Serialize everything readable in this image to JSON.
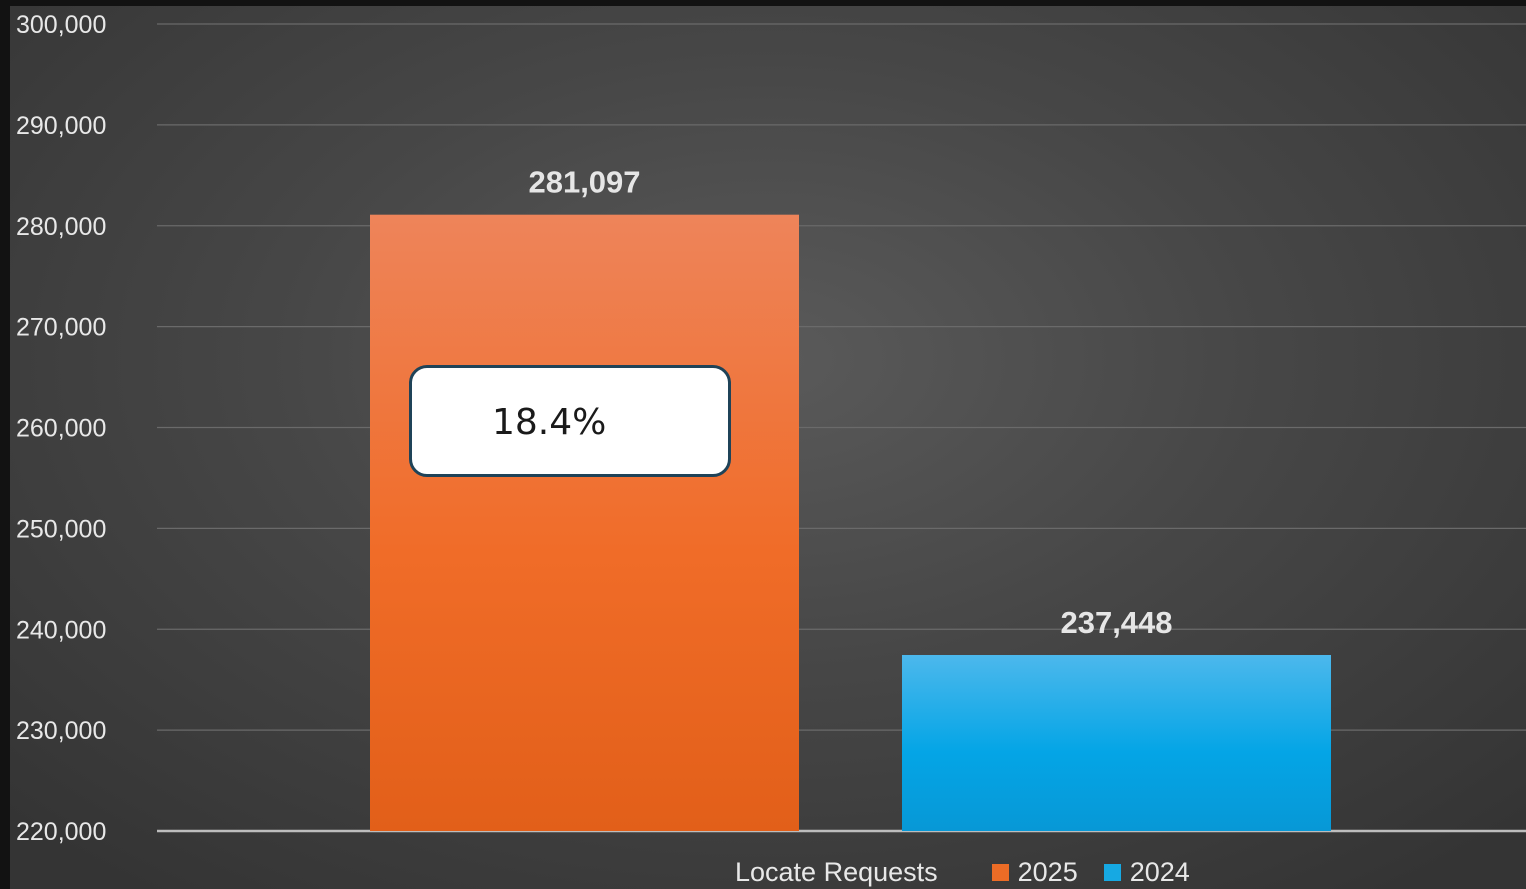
{
  "chart_data": {
    "type": "bar",
    "categories": [
      "Locate Requests"
    ],
    "series": [
      {
        "name": "2025",
        "values": [
          281097
        ],
        "color": "#ec6c26"
      },
      {
        "name": "2024",
        "values": [
          237448
        ],
        "color": "#16a9e3"
      }
    ],
    "ylim": [
      220000,
      300000
    ],
    "yticks": [
      "220,000",
      "230,000",
      "240,000",
      "250,000",
      "260,000",
      "270,000",
      "280,000",
      "290,000",
      "300,000"
    ],
    "data_labels": [
      "281,097",
      "237,448"
    ],
    "annotation": "18.4%",
    "legend_position": "bottom",
    "grid": true
  }
}
